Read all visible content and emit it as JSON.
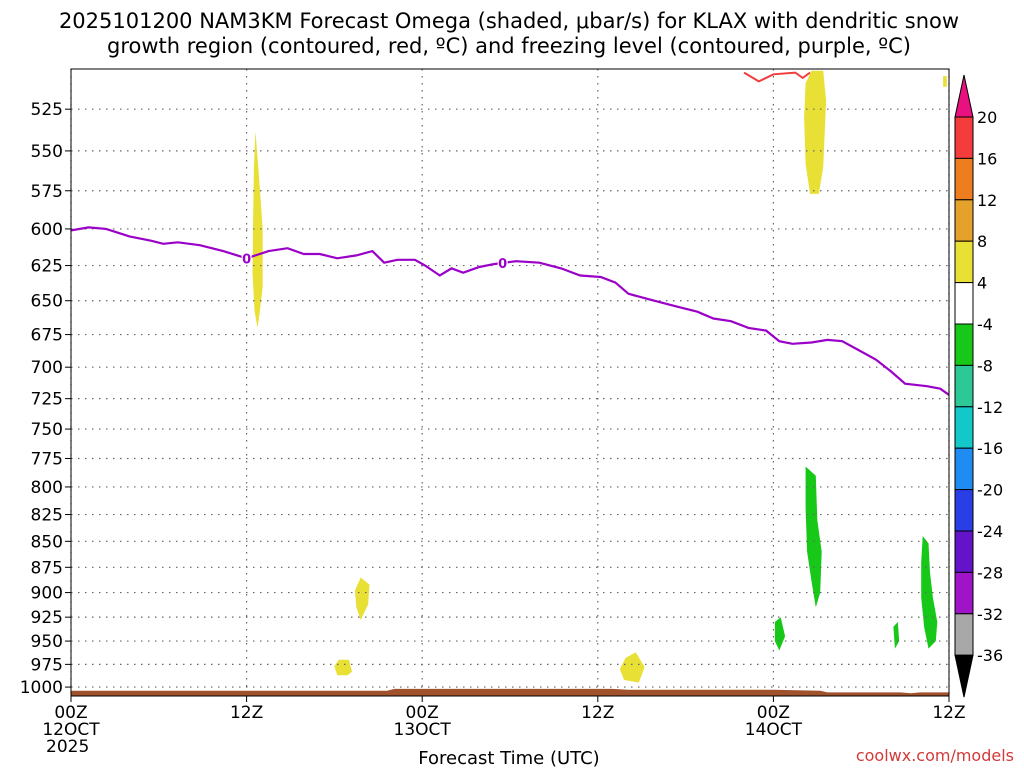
{
  "title": {
    "line1": "2025101200 NAM3KM Forecast Omega (shaded, μbar/s) for KLAX with dendritic snow",
    "line2": "growth region (contoured, red, ºC) and freezing level (contoured, purple, ºC)"
  },
  "credit": "coolwx.com/models",
  "chart_data": {
    "type": "time-height cross-section",
    "xlabel": "Forecast Time (UTC)",
    "x_ticks": [
      {
        "hours": 0,
        "lines": [
          "00Z",
          "12OCT",
          "2025"
        ]
      },
      {
        "hours": 12,
        "lines": [
          "12Z"
        ]
      },
      {
        "hours": 24,
        "lines": [
          "00Z",
          "13OCT"
        ]
      },
      {
        "hours": 36,
        "lines": [
          "12Z"
        ]
      },
      {
        "hours": 48,
        "lines": [
          "00Z",
          "14OCT"
        ]
      },
      {
        "hours": 60,
        "lines": [
          "12Z"
        ]
      }
    ],
    "xlim": [
      0,
      60
    ],
    "ylabel": "",
    "y_ticks": [
      525,
      550,
      575,
      600,
      625,
      650,
      675,
      700,
      725,
      750,
      775,
      800,
      825,
      850,
      875,
      900,
      925,
      950,
      975,
      1000
    ],
    "ylim_hpa": [
      1010,
      502
    ],
    "y_scale": "log",
    "grid": true,
    "colorbar": {
      "units": "μbar/s",
      "position": "right",
      "labels": [
        "20",
        "16",
        "12",
        "8",
        "4",
        "-4",
        "-8",
        "-12",
        "-16",
        "-20",
        "-24",
        "-28",
        "-32",
        "-36"
      ],
      "bins": [
        {
          "from": 20,
          "to": 24,
          "color": "#e8117f"
        },
        {
          "from": 16,
          "to": 20,
          "color": "#f43c3c"
        },
        {
          "from": 12,
          "to": 16,
          "color": "#ee7d20"
        },
        {
          "from": 8,
          "to": 12,
          "color": "#e4a22c"
        },
        {
          "from": 4,
          "to": 8,
          "color": "#e9e036"
        },
        {
          "from": -4,
          "to": 4,
          "color": "#ffffff"
        },
        {
          "from": -8,
          "to": -4,
          "color": "#18c818"
        },
        {
          "from": -12,
          "to": -8,
          "color": "#2cc896"
        },
        {
          "from": -16,
          "to": -12,
          "color": "#12c8c8"
        },
        {
          "from": -20,
          "to": -16,
          "color": "#1e8cf0"
        },
        {
          "from": -24,
          "to": -20,
          "color": "#2a3ee6"
        },
        {
          "from": -28,
          "to": -24,
          "color": "#6414c8"
        },
        {
          "from": -32,
          "to": -28,
          "color": "#a014c8"
        },
        {
          "from": -36,
          "to": -32,
          "color": "#a8a8a8"
        },
        {
          "from": -40,
          "to": -36,
          "color": "#000000"
        }
      ]
    },
    "freezing_level": {
      "label": "0",
      "color": "#9b00c8",
      "label_at_hours": [
        12,
        29.5
      ],
      "points": [
        [
          0,
          601
        ],
        [
          1.2,
          599
        ],
        [
          2.4,
          600
        ],
        [
          4,
          605
        ],
        [
          5.5,
          608
        ],
        [
          6.3,
          610
        ],
        [
          7.3,
          609
        ],
        [
          8.8,
          611
        ],
        [
          10.4,
          615
        ],
        [
          12,
          620
        ],
        [
          13.5,
          615
        ],
        [
          14.8,
          613
        ],
        [
          15.9,
          617
        ],
        [
          17,
          617
        ],
        [
          18.2,
          620
        ],
        [
          19.5,
          618
        ],
        [
          20.6,
          615
        ],
        [
          21.4,
          623
        ],
        [
          22.3,
          621
        ],
        [
          23.5,
          621
        ],
        [
          24.2,
          625
        ],
        [
          25.2,
          632
        ],
        [
          26,
          627
        ],
        [
          26.8,
          630
        ],
        [
          27.9,
          626
        ],
        [
          28.9,
          624
        ],
        [
          30.4,
          622
        ],
        [
          32,
          623
        ],
        [
          33.5,
          627
        ],
        [
          34.8,
          632
        ],
        [
          36.2,
          633
        ],
        [
          37.2,
          637
        ],
        [
          38.1,
          645
        ],
        [
          39.5,
          649
        ],
        [
          41.3,
          654
        ],
        [
          42.8,
          658
        ],
        [
          43.9,
          663
        ],
        [
          45.1,
          665
        ],
        [
          46.3,
          670
        ],
        [
          47.5,
          672
        ],
        [
          48.4,
          680
        ],
        [
          49.3,
          682
        ],
        [
          50.6,
          681
        ],
        [
          51.7,
          679
        ],
        [
          52.7,
          680
        ],
        [
          53.7,
          686
        ],
        [
          55,
          694
        ],
        [
          56,
          703
        ],
        [
          57,
          713
        ],
        [
          58.5,
          715
        ],
        [
          59.4,
          717
        ],
        [
          60,
          722
        ]
      ]
    },
    "dgz_contour": {
      "color": "#f43c3c",
      "points": [
        [
          46,
          504
        ],
        [
          47,
          509
        ],
        [
          48,
          505
        ],
        [
          49.5,
          504
        ],
        [
          50,
          507
        ],
        [
          50.5,
          504
        ]
      ]
    },
    "omega_regions": [
      {
        "value": 4,
        "points": [
          [
            12.6,
            538
          ],
          [
            12.8,
            560
          ],
          [
            13.1,
            600
          ],
          [
            13.1,
            640
          ],
          [
            12.9,
            658
          ],
          [
            12.75,
            670
          ],
          [
            12.55,
            658
          ],
          [
            12.4,
            630
          ],
          [
            12.45,
            590
          ],
          [
            12.5,
            560
          ]
        ]
      },
      {
        "value": 4,
        "points": [
          [
            50.6,
            503
          ],
          [
            51.4,
            503
          ],
          [
            51.6,
            520
          ],
          [
            51.4,
            560
          ],
          [
            51.1,
            577
          ],
          [
            50.5,
            577
          ],
          [
            50.2,
            558
          ],
          [
            50.1,
            530
          ],
          [
            50.2,
            510
          ]
        ]
      },
      {
        "value": 4,
        "points": [
          [
            19.8,
            885
          ],
          [
            20.4,
            892
          ],
          [
            20.3,
            912
          ],
          [
            19.8,
            928
          ],
          [
            19.5,
            915
          ],
          [
            19.4,
            898
          ]
        ]
      },
      {
        "value": 4,
        "points": [
          [
            18.3,
            970
          ],
          [
            19,
            970
          ],
          [
            19.2,
            983
          ],
          [
            18.9,
            987
          ],
          [
            18.2,
            987
          ],
          [
            18,
            977
          ]
        ]
      },
      {
        "value": 4,
        "points": [
          [
            37.9,
            968
          ],
          [
            38.6,
            962
          ],
          [
            39.2,
            978
          ],
          [
            38.8,
            995
          ],
          [
            37.8,
            992
          ],
          [
            37.5,
            980
          ]
        ]
      },
      {
        "value": 4,
        "points": [
          [
            59.6,
            506
          ],
          [
            59.85,
            506
          ],
          [
            59.85,
            512
          ],
          [
            59.6,
            512
          ]
        ]
      },
      {
        "value": -4,
        "points": [
          [
            40.1,
            876
          ],
          [
            41.3,
            865
          ],
          [
            41.5,
            847
          ],
          [
            42.6,
            835
          ],
          [
            42.6,
            813
          ],
          [
            43.2,
            795
          ],
          [
            43.2,
            773
          ],
          [
            43.9,
            779
          ],
          [
            44.7,
            797
          ],
          [
            45.8,
            795
          ],
          [
            45.8,
            848
          ],
          [
            44.9,
            858
          ],
          [
            45.1,
            868
          ],
          [
            44.6,
            876
          ],
          [
            43.6,
            882
          ],
          [
            42.9,
            878
          ],
          [
            41.9,
            882
          ],
          [
            41.4,
            895
          ],
          [
            40.5,
            895
          ]
        ]
      },
      {
        "value": -4,
        "points": [
          [
            42.4,
            910
          ],
          [
            42.9,
            895
          ],
          [
            43.3,
            910
          ],
          [
            43.2,
            935
          ],
          [
            42.8,
            962
          ],
          [
            42.4,
            962
          ],
          [
            42.1,
            935
          ]
        ]
      },
      {
        "value": -4,
        "points": [
          [
            37.2,
            910
          ],
          [
            37.8,
            903
          ],
          [
            38.1,
            915
          ],
          [
            37.7,
            925
          ],
          [
            37.3,
            922
          ]
        ]
      },
      {
        "value": -4,
        "points": [
          [
            46.3,
            780
          ],
          [
            47,
            752
          ],
          [
            46.8,
            740
          ],
          [
            47.6,
            718
          ],
          [
            48.5,
            702
          ],
          [
            50,
            698
          ],
          [
            51.7,
            705
          ],
          [
            52.6,
            690
          ],
          [
            53.1,
            722
          ],
          [
            53.7,
            740
          ],
          [
            54.2,
            710
          ],
          [
            54.8,
            685
          ],
          [
            55.4,
            705
          ],
          [
            55.6,
            735
          ],
          [
            56.2,
            745
          ],
          [
            56.6,
            800
          ],
          [
            56.8,
            845
          ],
          [
            57.1,
            838
          ],
          [
            57.6,
            790
          ],
          [
            58.4,
            745
          ],
          [
            59,
            700
          ],
          [
            59.5,
            690
          ],
          [
            59.8,
            725
          ],
          [
            59.9,
            795
          ],
          [
            60,
            960
          ],
          [
            59.4,
            981
          ],
          [
            58.1,
            980
          ],
          [
            57.6,
            960
          ],
          [
            57.2,
            985
          ],
          [
            56.7,
            935
          ],
          [
            56.3,
            920
          ],
          [
            55.9,
            905
          ],
          [
            55.9,
            935
          ],
          [
            55.2,
            990
          ],
          [
            54.8,
            945
          ],
          [
            54.6,
            895
          ],
          [
            54.3,
            905
          ],
          [
            54,
            945
          ],
          [
            53.6,
            998
          ],
          [
            53.2,
            935
          ],
          [
            52.8,
            915
          ],
          [
            52.5,
            885
          ],
          [
            52.2,
            925
          ],
          [
            51.9,
            900
          ],
          [
            51.7,
            870
          ],
          [
            51.5,
            895
          ],
          [
            51.3,
            930
          ],
          [
            51.2,
            960
          ],
          [
            50.9,
            985
          ],
          [
            50.5,
            990
          ],
          [
            50.2,
            960
          ],
          [
            50,
            935
          ],
          [
            49.8,
            910
          ],
          [
            49.5,
            930
          ],
          [
            49.2,
            985
          ],
          [
            49,
            955
          ],
          [
            48.8,
            918
          ],
          [
            48.4,
            895
          ],
          [
            48.1,
            915
          ],
          [
            47.9,
            945
          ],
          [
            47.6,
            968
          ],
          [
            47.3,
            948
          ],
          [
            47.1,
            928
          ],
          [
            46.9,
            910
          ],
          [
            46.4,
            885
          ],
          [
            46.3,
            840
          ],
          [
            46.5,
            815
          ]
        ]
      },
      {
        "value": -8,
        "points": [
          [
            50.2,
            782
          ],
          [
            50.9,
            790
          ],
          [
            51,
            830
          ],
          [
            51.3,
            860
          ],
          [
            51.2,
            900
          ],
          [
            50.9,
            915
          ],
          [
            50.6,
            888
          ],
          [
            50.3,
            860
          ],
          [
            50.2,
            820
          ]
        ]
      },
      {
        "value": -8,
        "points": [
          [
            48.1,
            930
          ],
          [
            48.5,
            925
          ],
          [
            48.8,
            945
          ],
          [
            48.4,
            960
          ],
          [
            48.1,
            950
          ]
        ]
      },
      {
        "value": -8,
        "points": [
          [
            58.2,
            845
          ],
          [
            58.6,
            852
          ],
          [
            58.7,
            880
          ],
          [
            58.9,
            905
          ],
          [
            59.2,
            930
          ],
          [
            59.1,
            950
          ],
          [
            58.6,
            958
          ],
          [
            58.3,
            935
          ],
          [
            58.1,
            905
          ],
          [
            58.1,
            870
          ]
        ]
      },
      {
        "value": -8,
        "points": [
          [
            56.2,
            935
          ],
          [
            56.5,
            930
          ],
          [
            56.6,
            950
          ],
          [
            56.3,
            958
          ]
        ]
      }
    ],
    "omega_holes": [
      [
        [
          52.5,
          810
        ],
        [
          52.9,
          800
        ],
        [
          53.1,
          830
        ],
        [
          52.8,
          845
        ],
        [
          52.4,
          835
        ]
      ],
      [
        [
          47.5,
          795
        ],
        [
          48,
          785
        ],
        [
          48.2,
          815
        ],
        [
          47.9,
          840
        ],
        [
          47.6,
          835
        ]
      ],
      [
        [
          58.8,
          855
        ],
        [
          59.3,
          850
        ],
        [
          59.5,
          880
        ],
        [
          59.2,
          905
        ],
        [
          58.9,
          895
        ]
      ]
    ],
    "terrain": {
      "color": "#a0522d",
      "points": [
        [
          0,
          1004
        ],
        [
          21.6,
          1004
        ],
        [
          22.1,
          1002
        ],
        [
          37,
          1002
        ],
        [
          38.1,
          1003
        ],
        [
          48,
          1003
        ],
        [
          51.2,
          1004
        ],
        [
          51.7,
          1006
        ],
        [
          56.7,
          1006
        ],
        [
          57.4,
          1007
        ],
        [
          58,
          1006
        ],
        [
          60,
          1006
        ]
      ]
    }
  }
}
